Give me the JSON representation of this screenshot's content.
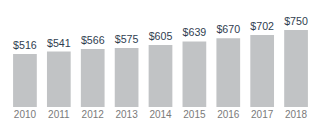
{
  "chart_data": {
    "type": "bar",
    "categories": [
      "2010",
      "2011",
      "2012",
      "2013",
      "2014",
      "2015",
      "2016",
      "2017",
      "2018"
    ],
    "values": [
      516,
      541,
      566,
      575,
      605,
      639,
      670,
      702,
      750
    ],
    "value_labels": [
      "$516",
      "$541",
      "$566",
      "$575",
      "$605",
      "$639",
      "$670",
      "$702",
      "$750"
    ],
    "color": "#c1c3c5",
    "ylim": [
      0,
      750
    ],
    "grid": false,
    "data_labels": true,
    "tick_labels": "x"
  }
}
